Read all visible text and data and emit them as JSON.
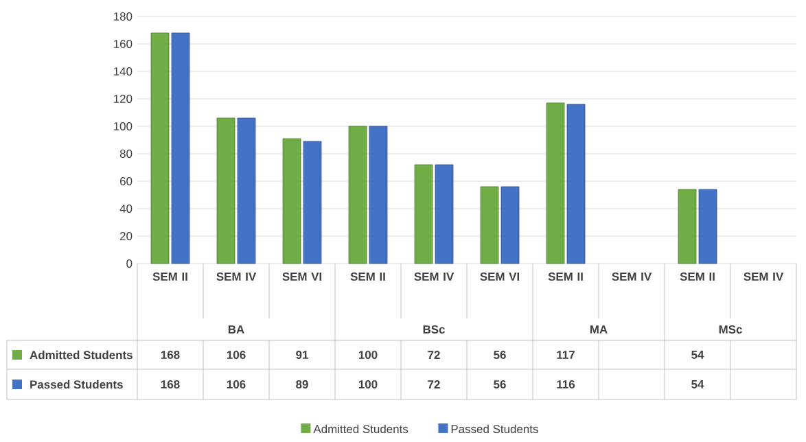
{
  "chart_data": {
    "type": "bar",
    "categories": [
      "SEM II",
      "SEM IV",
      "SEM VI",
      "SEM II",
      "SEM IV",
      "SEM VI",
      "SEM II",
      "SEM IV",
      "SEM II",
      "SEM IV"
    ],
    "annotations": [
      "BA",
      "BSc",
      "MA",
      "MSc"
    ],
    "series": [
      {
        "name": "Admitted Students",
        "color": "#70ad47",
        "values": [
          168,
          106,
          91,
          100,
          72,
          56,
          117,
          null,
          54,
          null
        ]
      },
      {
        "name": "Passed Students",
        "color": "#4472c4",
        "values": [
          168,
          106,
          89,
          100,
          72,
          56,
          116,
          null,
          54,
          null
        ]
      }
    ],
    "ylim": [
      0,
      180
    ],
    "yticks": [
      0,
      20,
      40,
      60,
      80,
      100,
      120,
      140,
      160,
      180
    ],
    "grid": "y",
    "legend": "bottom",
    "data_labels": true
  }
}
